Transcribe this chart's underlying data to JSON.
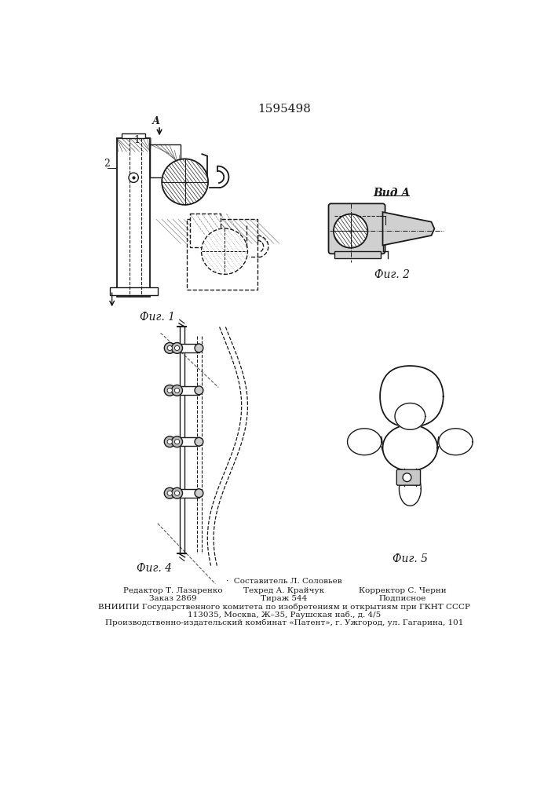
{
  "title": "1595498",
  "background_color": "#ffffff",
  "line_color": "#1a1a1a",
  "hatch_color": "#1a1a1a",
  "fig1_label": "Фиг. 1",
  "fig2_label": "Фиг. 2",
  "fig4_label": "Фиг. 4",
  "fig5_label": "Фиг. 5",
  "vid_a_label": "Вид A",
  "footer_line1": "·  Составитель Л. Соловьев",
  "footer_line2_left": "Редактор Т. Лазаренко",
  "footer_line2_mid": "Техред А. Крайчук",
  "footer_line2_right": "Корректор С. Черни",
  "footer_line3_left": "Заказ 2869",
  "footer_line3_mid": "Тираж 544",
  "footer_line3_right": "Подписное",
  "footer_line4": "ВНИИПИ Государственного комитета по изобретениям и открытиям при ГКНТ СССР",
  "footer_line5": "113035, Москва, Ж–35, Раушская наб., д. 4/5",
  "footer_line6": "Производственно-издательский комбинат «Патент», г. Ужгород, ул. Гагарина, 101"
}
